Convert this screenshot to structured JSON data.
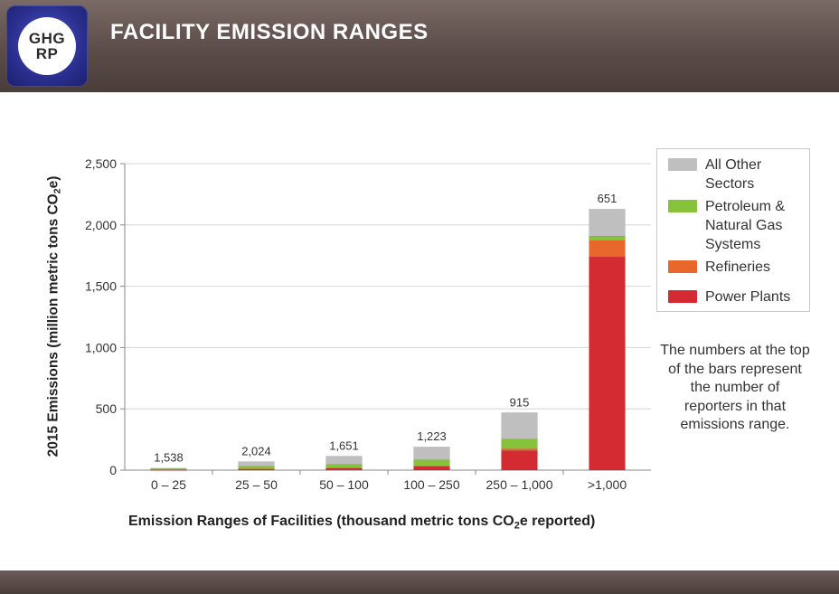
{
  "header": {
    "logo_line1": "GHG",
    "logo_line2": "RP",
    "title": "FACILITY EMISSION RANGES"
  },
  "chart_data": {
    "type": "bar",
    "stacked": true,
    "categories": [
      "0 – 25",
      "25 – 50",
      "50 – 100",
      "100 – 250",
      "250 – 1,000",
      ">1,000"
    ],
    "bar_top_labels": [
      "1,538",
      "2,024",
      "1,651",
      "1,223",
      "915",
      "651"
    ],
    "series": [
      {
        "name": "Power Plants",
        "color": "#d42a32",
        "values": [
          3,
          10,
          18,
          30,
          160,
          1740
        ]
      },
      {
        "name": "Refineries",
        "color": "#e8672a",
        "values": [
          0,
          2,
          2,
          5,
          15,
          135
        ]
      },
      {
        "name": "Petroleum & Natural Gas Systems",
        "color": "#86c33b",
        "values": [
          8,
          23,
          30,
          50,
          80,
          35
        ]
      },
      {
        "name": "All Other Sectors",
        "color": "#bfbfbf",
        "values": [
          6,
          35,
          65,
          105,
          215,
          220
        ]
      }
    ],
    "ylim": [
      0,
      2500
    ],
    "yticks": [
      0,
      500,
      1000,
      1500,
      2000,
      2500
    ],
    "ytick_labels": [
      "0",
      "500",
      "1,000",
      "1,500",
      "2,000",
      "2,500"
    ],
    "grid": true,
    "legend_position": "right",
    "xlabel_pre": "Emission Ranges of Facilities (thousand metric tons CO",
    "xlabel_sub": "2",
    "xlabel_post": "e reported)",
    "ylabel_pre": "2015 Emissions (million metric tons CO",
    "ylabel_sub": "2",
    "ylabel_post": "e)",
    "note": "The numbers at the top of the bars represent the number of reporters in that emissions range."
  },
  "legend": {
    "items": [
      {
        "label": "All Other Sectors",
        "color": "#bfbfbf"
      },
      {
        "label": "Petroleum & Natural Gas Systems",
        "color": "#86c33b"
      },
      {
        "label": "Refineries",
        "color": "#e8672a"
      },
      {
        "label": "Power Plants",
        "color": "#d42a32"
      }
    ]
  }
}
